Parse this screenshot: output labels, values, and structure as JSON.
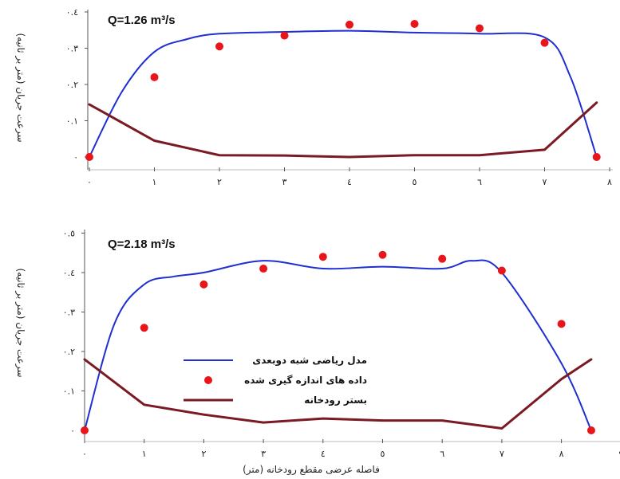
{
  "chart_data": [
    {
      "type": "line",
      "annotation": "Q=1.26 m³/s",
      "ylabel": "سرعت جریان (متر بر ثانیه)",
      "xlabel": "",
      "ylim": [
        0,
        0.4
      ],
      "xlim": [
        0,
        8
      ],
      "x_ticks": [
        "٠",
        "١",
        "٢",
        "٣",
        "٤",
        "٥",
        "٦",
        "٧",
        "٨"
      ],
      "y_ticks": [
        "٠",
        "٠.١",
        "٠.٢",
        "٠.٣",
        "٠.٤"
      ],
      "series": [
        {
          "name": "مدل ریاضی شبه دوبعدی",
          "type": "line",
          "color": "#1f2fd0",
          "x": [
            0,
            0.5,
            1,
            1.5,
            2,
            3,
            4,
            5,
            6,
            7,
            7.4,
            7.8
          ],
          "y": [
            0,
            0.18,
            0.29,
            0.325,
            0.34,
            0.345,
            0.348,
            0.343,
            0.34,
            0.33,
            0.22,
            0
          ]
        },
        {
          "name": "داده های اندازه گیری شده",
          "type": "scatter",
          "color": "#e8161a",
          "x": [
            0,
            1,
            2,
            3,
            4,
            5,
            6,
            7,
            7.8
          ],
          "y": [
            0,
            0.22,
            0.305,
            0.335,
            0.365,
            0.367,
            0.355,
            0.315,
            0
          ]
        },
        {
          "name": "بستر رودخانه",
          "type": "line",
          "color": "#7a1a22",
          "x": [
            0,
            1,
            2,
            3,
            4,
            5,
            6,
            7,
            7.8
          ],
          "y": [
            0.145,
            0.045,
            0.005,
            0.004,
            0,
            0.005,
            0.005,
            0.02,
            0.15
          ]
        }
      ]
    },
    {
      "type": "line",
      "annotation": "Q=2.18 m³/s",
      "ylabel": "سرعت جریان (متر بر ثانیه)",
      "xlabel": "فاصله عرضی مقطع رودخانه (متر)",
      "ylim": [
        0,
        0.5
      ],
      "xlim": [
        0,
        9
      ],
      "x_ticks": [
        "٠",
        "١",
        "٢",
        "٣",
        "٤",
        "٥",
        "٦",
        "٧",
        "٨",
        "٩"
      ],
      "y_ticks": [
        "٠",
        "٠.١",
        "٠.٢",
        "٠.٣",
        "٠.٤",
        "٠.٥"
      ],
      "legend": {
        "position": "center-left"
      },
      "series": [
        {
          "name": "مدل ریاضی شبه دوبعدی",
          "type": "line",
          "color": "#1f2fd0",
          "x": [
            0,
            0.5,
            1,
            1.5,
            2,
            3,
            4,
            5,
            6,
            6.5,
            7,
            8,
            8.5
          ],
          "y": [
            0,
            0.27,
            0.37,
            0.39,
            0.4,
            0.43,
            0.41,
            0.415,
            0.41,
            0.43,
            0.4,
            0.17,
            0
          ]
        },
        {
          "name": "داده های اندازه گیری شده",
          "type": "scatter",
          "color": "#e8161a",
          "x": [
            0,
            1,
            2,
            3,
            4,
            5,
            6,
            7,
            8,
            8.5
          ],
          "y": [
            0,
            0.26,
            0.37,
            0.41,
            0.44,
            0.445,
            0.435,
            0.405,
            0.27,
            0
          ]
        },
        {
          "name": "بستر رودخانه",
          "type": "line",
          "color": "#7a1a22",
          "x": [
            0,
            1,
            2,
            3,
            4,
            5,
            6,
            7,
            8,
            8.5
          ],
          "y": [
            0.18,
            0.065,
            0.04,
            0.02,
            0.03,
            0.025,
            0.025,
            0.005,
            0.13,
            0.18
          ]
        }
      ]
    }
  ]
}
